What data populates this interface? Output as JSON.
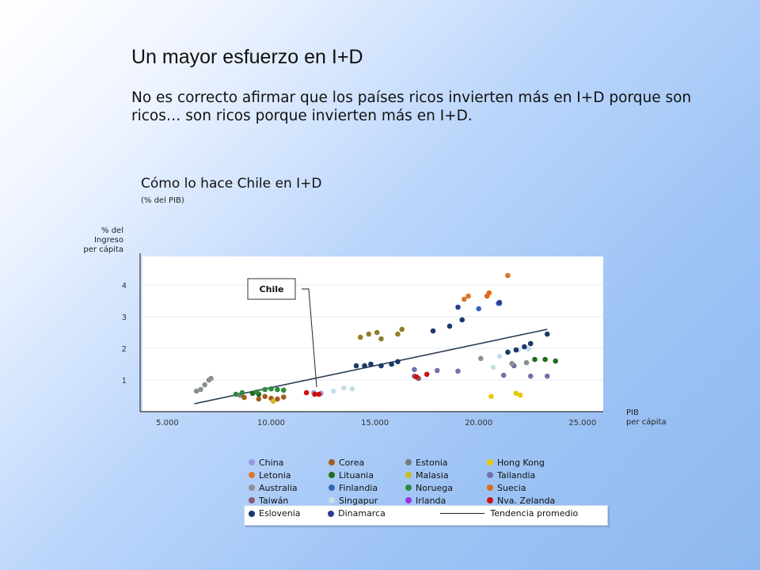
{
  "slide": {
    "title": "Un mayor esfuerzo en I+D",
    "subtitle": "No es correcto afirmar que los países ricos invierten más en I+D porque son ricos… son ricos porque invierten más en I+D."
  },
  "chart_data": {
    "type": "scatter",
    "title": "Cómo lo hace Chile en I+D",
    "subtitle": "(% del PIB)",
    "ylabel_lines": [
      "% del",
      "Ingreso",
      "per cápita"
    ],
    "xlabel_lines": [
      "PIB",
      "per cápita"
    ],
    "xlim": [
      3800,
      26000
    ],
    "ylim": [
      0,
      4.9
    ],
    "xticks": [
      5000,
      10000,
      15000,
      20000,
      25000
    ],
    "xtick_labels": [
      "5.000",
      "10.000",
      "15.000",
      "20.000",
      "25.000"
    ],
    "yticks": [
      1,
      2,
      3,
      4
    ],
    "ytick_labels": [
      "1",
      "2",
      "3",
      "4"
    ],
    "grid": true,
    "callout": "Chile",
    "trend": {
      "name": "Tendencia promedio",
      "x": [
        6300,
        23300
      ],
      "y": [
        0.25,
        2.6
      ]
    },
    "series": [
      {
        "name": "China",
        "color": "#9999dd",
        "points": [
          [
            12400,
            0.58
          ],
          [
            12050,
            0.6
          ]
        ]
      },
      {
        "name": "Corea",
        "color": "#a35c1e",
        "points": [
          [
            8700,
            0.45
          ],
          [
            9400,
            0.4
          ],
          [
            9700,
            0.48
          ],
          [
            10000,
            0.42
          ],
          [
            10300,
            0.4
          ],
          [
            10600,
            0.46
          ]
        ]
      },
      {
        "name": "Estonia",
        "color": "#7a7a7a",
        "points": [
          [
            8500,
            0.52
          ]
        ]
      },
      {
        "name": "Hong Kong",
        "color": "#e8c800",
        "points": [
          [
            20600,
            0.48
          ],
          [
            21800,
            0.58
          ],
          [
            22000,
            0.52
          ]
        ]
      },
      {
        "name": "Letonia",
        "color": "#d8782a",
        "points": [
          [
            19300,
            3.55
          ],
          [
            19500,
            3.65
          ],
          [
            21400,
            4.3
          ]
        ]
      },
      {
        "name": "Lituania",
        "color": "#1f6b1f",
        "points": [
          [
            9100,
            0.58
          ],
          [
            9400,
            0.55
          ],
          [
            22700,
            1.65
          ],
          [
            23200,
            1.65
          ],
          [
            23700,
            1.6
          ]
        ]
      },
      {
        "name": "Malasia",
        "color": "#ccbb22",
        "points": [
          [
            10100,
            0.33
          ]
        ]
      },
      {
        "name": "Tailandia",
        "color": "#7070aa",
        "points": [
          [
            16900,
            1.33
          ],
          [
            18000,
            1.3
          ],
          [
            19000,
            1.28
          ],
          [
            21200,
            1.15
          ],
          [
            21700,
            1.45
          ],
          [
            22500,
            1.12
          ],
          [
            23300,
            1.12
          ]
        ]
      },
      {
        "name": "Australia",
        "color": "#8a9090",
        "points": [
          [
            6400,
            0.65
          ],
          [
            6600,
            0.7
          ],
          [
            6800,
            0.85
          ],
          [
            7000,
            1.0
          ],
          [
            7100,
            1.05
          ],
          [
            21600,
            1.52
          ],
          [
            22300,
            1.55
          ],
          [
            20100,
            1.68
          ]
        ]
      },
      {
        "name": "Finlandia",
        "color": "#3366bb",
        "points": [
          [
            20000,
            3.25
          ],
          [
            21000,
            3.42
          ],
          [
            20950,
            3.42
          ]
        ]
      },
      {
        "name": "Noruega",
        "color": "#2e8b3a",
        "points": [
          [
            8300,
            0.55
          ],
          [
            8600,
            0.6
          ],
          [
            9300,
            0.62
          ],
          [
            9700,
            0.7
          ],
          [
            10000,
            0.72
          ],
          [
            10300,
            0.7
          ],
          [
            10600,
            0.68
          ]
        ]
      },
      {
        "name": "Suecia",
        "color": "#e06a1a",
        "points": [
          [
            20400,
            3.65
          ],
          [
            20500,
            3.75
          ]
        ]
      },
      {
        "name": "Taiwán",
        "color": "#8a5a7a",
        "points": [
          [
            16900,
            1.12
          ],
          [
            17100,
            1.05
          ]
        ]
      },
      {
        "name": "Singapur",
        "color": "#c5dfe8",
        "points": [
          [
            13000,
            0.65
          ],
          [
            13500,
            0.75
          ],
          [
            13900,
            0.72
          ],
          [
            20700,
            1.4
          ],
          [
            21000,
            1.75
          ],
          [
            21900,
            1.95
          ],
          [
            22400,
            1.98
          ]
        ]
      },
      {
        "name": "Irlanda",
        "color": "#9933dd",
        "points": []
      },
      {
        "name": "Nva. Zelanda",
        "color": "#cc1111",
        "points": [
          [
            11700,
            0.6
          ],
          [
            12100,
            0.55
          ],
          [
            12300,
            0.55
          ],
          [
            17000,
            1.1
          ],
          [
            17500,
            1.18
          ]
        ]
      },
      {
        "name": "Eslovenia",
        "color": "#1a3a6a",
        "points": [
          [
            14100,
            1.45
          ],
          [
            14500,
            1.45
          ],
          [
            14800,
            1.5
          ],
          [
            15300,
            1.45
          ],
          [
            15800,
            1.5
          ],
          [
            16100,
            1.58
          ],
          [
            17800,
            2.55
          ],
          [
            18600,
            2.7
          ],
          [
            19200,
            2.9
          ],
          [
            21400,
            1.88
          ],
          [
            21800,
            1.95
          ],
          [
            22200,
            2.05
          ],
          [
            22500,
            2.15
          ],
          [
            23300,
            2.45
          ]
        ]
      },
      {
        "name": "Dinamarca",
        "color": "#2a3f8f",
        "points": [
          [
            21000,
            3.45
          ],
          [
            19000,
            3.3
          ]
        ]
      },
      {
        "name": "",
        "color": "#8f7f2a",
        "points": [
          [
            14300,
            2.35
          ],
          [
            14700,
            2.45
          ],
          [
            15100,
            2.5
          ],
          [
            15300,
            2.3
          ],
          [
            16100,
            2.45
          ],
          [
            16300,
            2.6
          ]
        ]
      }
    ]
  },
  "legend": {
    "rows": [
      [
        "China",
        "Corea",
        "Estonia",
        "Hong Kong"
      ],
      [
        "Letonia",
        "Lituania",
        "Malasia",
        "Tailandia"
      ],
      [
        "Australia",
        "Finlandia",
        "Noruega",
        "Suecia"
      ],
      [
        "Taiwán",
        "Singapur",
        "Irlanda",
        "Nva. Zelanda"
      ]
    ],
    "last_row": [
      "Eslovenia",
      "Dinamarca"
    ],
    "trend_label": "Tendencia promedio",
    "colors": {
      "China": "#9999dd",
      "Corea": "#a35c1e",
      "Estonia": "#7a7a7a",
      "Hong Kong": "#e8c800",
      "Letonia": "#d8782a",
      "Lituania": "#1f6b1f",
      "Malasia": "#ccbb22",
      "Tailandia": "#7070aa",
      "Australia": "#8a9090",
      "Finlandia": "#3366bb",
      "Noruega": "#2e8b3a",
      "Suecia": "#e06a1a",
      "Taiwán": "#8a5a7a",
      "Singapur": "#c5dfe8",
      "Irlanda": "#9933dd",
      "Nva. Zelanda": "#cc1111",
      "Eslovenia": "#1a3a6a",
      "Dinamarca": "#2a3f8f"
    }
  }
}
